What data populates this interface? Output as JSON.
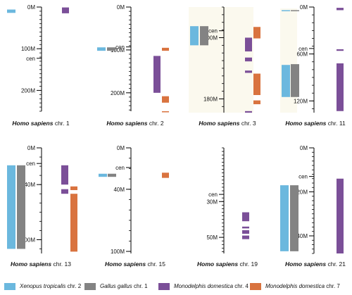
{
  "colors": {
    "xenopus": "#6bb8de",
    "gallus": "#838383",
    "monodelphis4": "#7b4f98",
    "monodelphis7": "#d9733f",
    "axis": "#000000",
    "pale_bar": "#fbf9ee"
  },
  "legend": [
    {
      "genus": "Xenopus tropicalis",
      "suffix": " chr. 2",
      "color_key": "xenopus"
    },
    {
      "genus": "Gallus gallus",
      "suffix": " chr. 1",
      "color_key": "gallus"
    },
    {
      "genus": "Monodelphis domestica",
      "suffix": " chr. 4",
      "color_key": "monodelphis4"
    },
    {
      "genus": "Monodelphis domestica",
      "suffix": " chr. 7",
      "color_key": "monodelphis7"
    }
  ],
  "panels": [
    {
      "species": "Homo sapiens",
      "chr": " chr. 1",
      "max": 250,
      "ticks": [
        0,
        100,
        200
      ],
      "tick_labels": [
        "0M",
        "100M",
        "200M"
      ],
      "minor": 10,
      "cen": 123,
      "cen_label": "cen",
      "tracks": [
        {
          "color_key": "xenopus",
          "slot": 0,
          "segments": [
            [
              6,
              14
            ]
          ]
        },
        {
          "color_key": "monodelphis4",
          "slot": 2,
          "segments": [
            [
              1,
              15
            ]
          ]
        }
      ]
    },
    {
      "species": "Homo sapiens",
      "chr": " chr. 2",
      "max": 243,
      "ticks": [
        0,
        100,
        200
      ],
      "tick_labels": [
        "0M",
        "100M",
        "200M"
      ],
      "minor": 10,
      "cen": 93,
      "cen_label": "cen",
      "tracks": [
        {
          "color_key": "xenopus",
          "slot": 0,
          "segments": [
            [
              94,
              102
            ]
          ]
        },
        {
          "color_key": "gallus",
          "slot": 1,
          "segments": [
            [
              94,
              102
            ]
          ]
        },
        {
          "color_key": "monodelphis4",
          "slot": 2,
          "segments": [
            [
              114,
              200
            ]
          ]
        },
        {
          "color_key": "monodelphis7",
          "slot": 3,
          "segments": [
            [
              95,
              102
            ],
            [
              208,
              223
            ],
            [
              243,
              245
            ]
          ]
        }
      ]
    },
    {
      "species": "Homo sapiens",
      "chr": " chr. 3",
      "min": 60,
      "max": 198,
      "ticks": [
        100,
        180
      ],
      "tick_labels": [
        "100M",
        "180M"
      ],
      "minor": 10,
      "cen": 91,
      "cen_label": "cen",
      "tracks": [
        {
          "color_key": "xenopus",
          "slot": 0,
          "segments": [
            [
              110,
              85
            ]
          ]
        },
        {
          "color_key": "gallus",
          "slot": 1,
          "segments": [
            [
              110,
              85
            ]
          ]
        },
        {
          "color_key": "monodelphis4",
          "slot": 2,
          "segments": [
            [
              100,
              118
            ],
            [
              126,
              131
            ],
            [
              143,
              146
            ],
            [
              196,
              198
            ]
          ]
        },
        {
          "color_key": "monodelphis7",
          "slot": 3,
          "segments": [
            [
              86,
              101
            ],
            [
              147,
              175
            ],
            [
              182,
              187
            ]
          ]
        }
      ]
    },
    {
      "species": "Homo sapiens",
      "chr": " chr. 11",
      "max": 135,
      "ticks": [
        0,
        60,
        120
      ],
      "tick_labels": [
        "0M",
        "60M",
        "120M"
      ],
      "minor": 10,
      "cen": 53,
      "cen_label": "cen",
      "tracks": [
        {
          "color_key": "xenopus",
          "slot": 0,
          "segments": [
            [
              4,
              5
            ],
            [
              74,
              115
            ]
          ]
        },
        {
          "color_key": "gallus",
          "slot": 1,
          "segments": [
            [
              4,
              5
            ],
            [
              73,
              115
            ]
          ]
        },
        {
          "color_key": "monodelphis4",
          "slot": 2,
          "segments": [
            [
              1,
              4
            ],
            [
              54,
              56
            ],
            [
              72,
              133
            ]
          ]
        }
      ]
    },
    {
      "species": "Homo sapiens",
      "chr": " chr. 13",
      "max": 115,
      "ticks": [
        0,
        40,
        100
      ],
      "tick_labels": [
        "0M",
        "40M",
        "100M"
      ],
      "minor": 10,
      "cen": 17,
      "cen_label": "cen",
      "tracks": [
        {
          "color_key": "xenopus",
          "slot": 0,
          "segments": [
            [
              19,
              110
            ]
          ]
        },
        {
          "color_key": "gallus",
          "slot": 1,
          "segments": [
            [
              19,
              110
            ]
          ]
        },
        {
          "color_key": "monodelphis4",
          "slot": 2,
          "segments": [
            [
              19,
              40
            ],
            [
              45,
              50
            ]
          ]
        },
        {
          "color_key": "monodelphis7",
          "slot": 3,
          "segments": [
            [
              42,
              46
            ],
            [
              50,
              113
            ]
          ]
        }
      ]
    },
    {
      "species": "Homo sapiens",
      "chr": " chr. 15",
      "max": 102,
      "ticks": [
        0,
        40,
        100
      ],
      "tick_labels": [
        "0M",
        "40M",
        "100M"
      ],
      "minor": 10,
      "cen": 19,
      "cen_label": "cen",
      "tracks": [
        {
          "color_key": "xenopus",
          "slot": 0,
          "segments": [
            [
              25,
              28
            ]
          ]
        },
        {
          "color_key": "gallus",
          "slot": 1,
          "segments": [
            [
              25,
              28
            ]
          ]
        },
        {
          "color_key": "monodelphis7",
          "slot": 3,
          "segments": [
            [
              24,
              29
            ]
          ]
        }
      ]
    },
    {
      "species": "Homo sapiens",
      "chr": " chr. 19",
      "max": 59,
      "ticks": [
        30,
        50
      ],
      "tick_labels": [
        "30M",
        "50M"
      ],
      "minor": 2,
      "cen": 26,
      "cen_label": "cen",
      "tracks": [
        {
          "color_key": "monodelphis4",
          "slot": 2,
          "segments": [
            [
              36,
              41
            ],
            [
              44,
              45
            ],
            [
              46,
              48
            ],
            [
              49,
              51
            ]
          ]
        }
      ]
    },
    {
      "species": "Homo sapiens",
      "chr": " chr. 21",
      "max": 48,
      "ticks": [
        0,
        20,
        40
      ],
      "tick_labels": [
        "0M",
        "20M",
        "40M"
      ],
      "minor": 2,
      "cen": 13,
      "cen_label": "cen",
      "tracks": [
        {
          "color_key": "xenopus",
          "slot": 0,
          "segments": [
            [
              17,
              47
            ]
          ]
        },
        {
          "color_key": "gallus",
          "slot": 1,
          "segments": [
            [
              17,
              47
            ]
          ]
        },
        {
          "color_key": "monodelphis4",
          "slot": 2,
          "segments": [
            [
              14,
              48
            ]
          ]
        }
      ]
    }
  ]
}
